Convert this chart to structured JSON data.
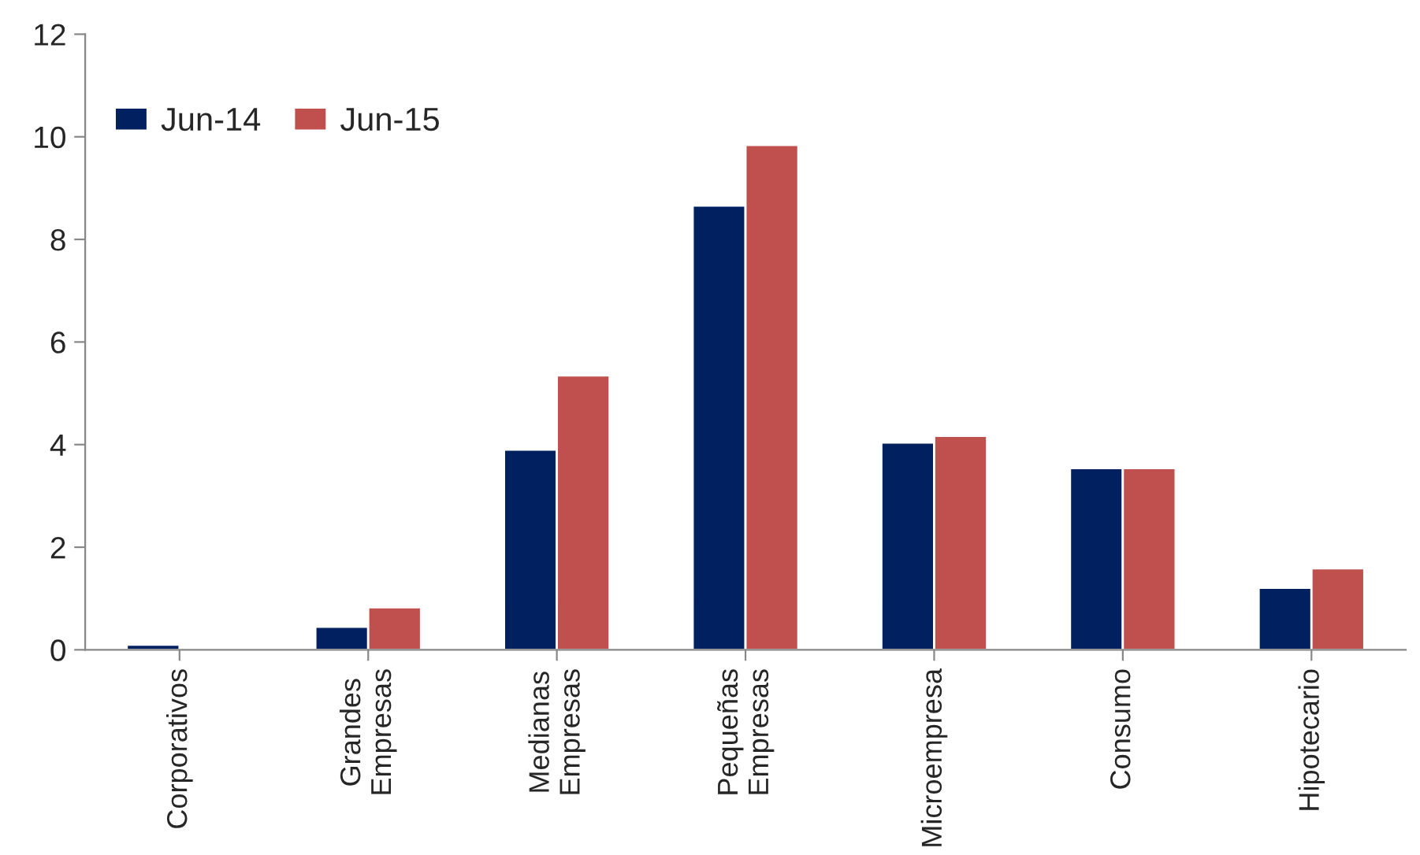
{
  "chart_data": {
    "type": "bar",
    "categories": [
      "Corporativos",
      "Grandes\nEmpresas",
      "Medianas\nEmpresas",
      "Pequeñas\nEmpresas",
      "Microempresa",
      "Consumo",
      "Hipotecario"
    ],
    "series": [
      {
        "name": "Jun-14",
        "color": "#002060",
        "values": [
          0.1,
          0.45,
          3.9,
          8.66,
          4.04,
          3.54,
          1.21
        ]
      },
      {
        "name": "Jun-15",
        "color": "#c0504d",
        "values": [
          null,
          0.83,
          5.35,
          9.84,
          4.17,
          3.54,
          1.59
        ]
      }
    ],
    "ylim": [
      0,
      12
    ],
    "yticks": [
      0,
      2,
      4,
      6,
      8,
      10,
      12
    ],
    "grid": false,
    "legend": "top left"
  }
}
